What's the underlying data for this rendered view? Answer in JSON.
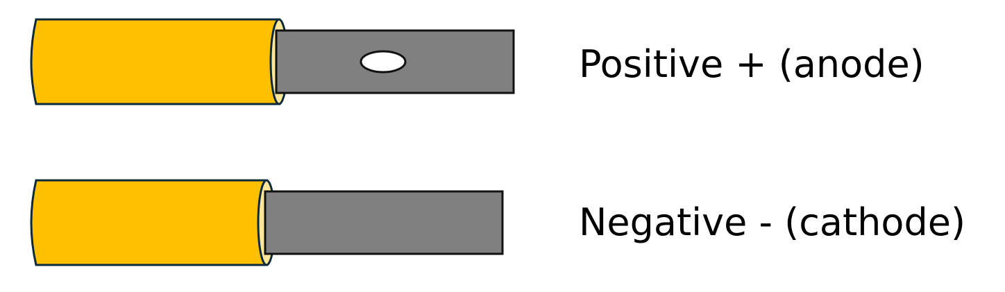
{
  "terminals": [
    {
      "name": "positive",
      "label": "Positive + (anode)",
      "has_hole": true
    },
    {
      "name": "negative",
      "label": "Negative - (cathode)",
      "has_hole": false
    }
  ],
  "colors": {
    "insulation": "#FFC000",
    "insulation_end": "#FFE699",
    "outline": "#0C2A3E",
    "tab": "#808080",
    "tab_outline": "#111111",
    "hole": "#FFFFFF",
    "text": "#000000"
  }
}
